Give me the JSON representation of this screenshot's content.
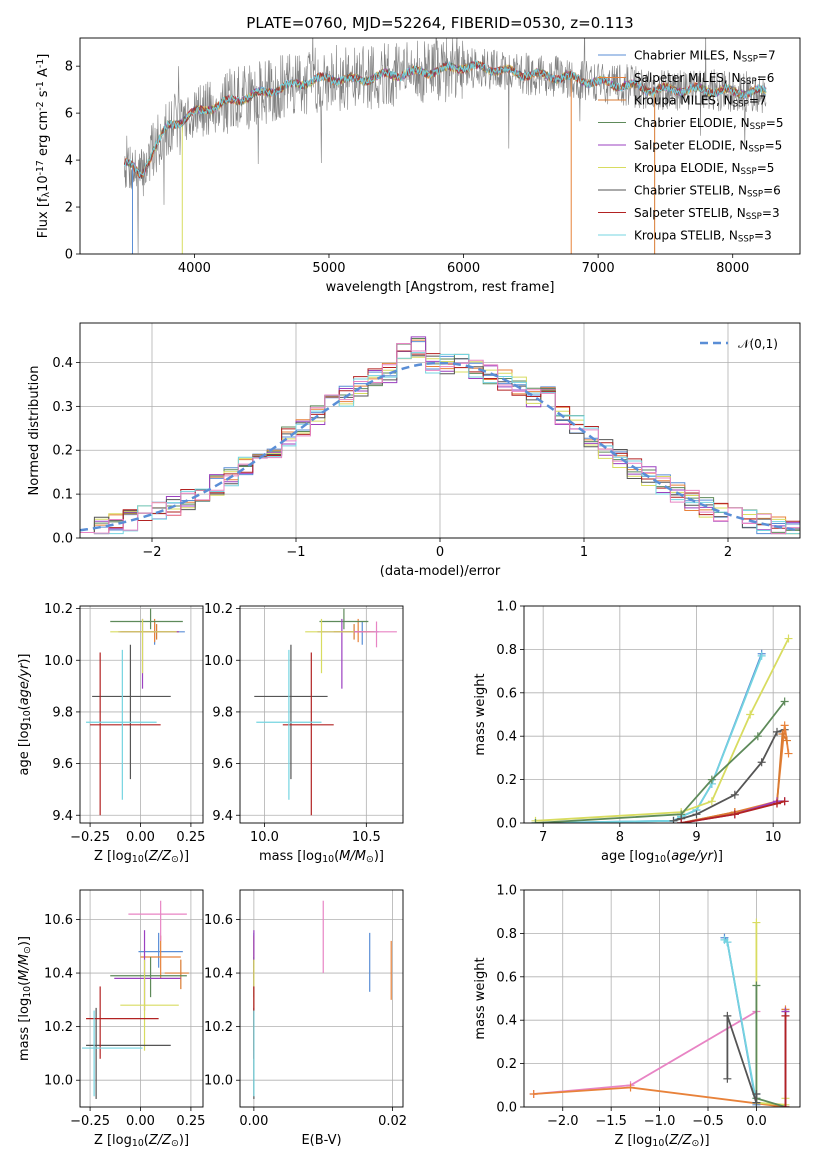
{
  "colors": [
    "#5a8ed6",
    "#e8823a",
    "#d97a30",
    "#5e8a5a",
    "#9b40c0",
    "#d8dc60",
    "#555555",
    "#b22222",
    "#74d4e0",
    "#e884c4"
  ],
  "chart_data": [
    {
      "id": "spectrum",
      "type": "line",
      "title": "PLATE=0760, MJD=52264, FIBERID=0530, z=0.113",
      "xlabel": "wavelength [Angstrom, rest frame]",
      "ylabel": "Flux [f$_\\lambda$10$^{-17}$ erg cm$^{-2}$ s$^{-1}$ A$^{-1}$]",
      "xlim": [
        3150,
        8500
      ],
      "ylim": [
        0,
        9.2
      ],
      "xticks": [
        "4000",
        "5000",
        "6000",
        "7000",
        "8000"
      ],
      "yticks": [
        "0",
        "2",
        "4",
        "6",
        "8"
      ],
      "grid": false,
      "legend_position": "top-right",
      "legend": [
        {
          "label": "Chabrier MILES, N$_{SSP}$=7",
          "color": "#5a8ed6"
        },
        {
          "label": "Salpeter MILES, N$_{SSP}$=6",
          "color": "#e8823a"
        },
        {
          "label": "Kroupa MILES, N$_{SSP}$=7",
          "color": "#d97a30"
        },
        {
          "label": "Chabrier ELODIE, N$_{SSP}$=5",
          "color": "#5e8a5a"
        },
        {
          "label": "Salpeter ELODIE, N$_{SSP}$=5",
          "color": "#9b40c0"
        },
        {
          "label": "Kroupa ELODIE, N$_{SSP}$=5",
          "color": "#d8dc60"
        },
        {
          "label": "Chabrier STELIB, N$_{SSP}$=6",
          "color": "#555555"
        },
        {
          "label": "Salpeter STELIB, N$_{SSP}$=3",
          "color": "#b22222"
        },
        {
          "label": "Kroupa STELIB, N$_{SSP}$=3",
          "color": "#74d4e0"
        }
      ],
      "model_envelope": [
        [
          3500,
          3.9
        ],
        [
          3600,
          3.3
        ],
        [
          3700,
          4.5
        ],
        [
          3800,
          5.4
        ],
        [
          3900,
          5.7
        ],
        [
          4000,
          6.0
        ],
        [
          4200,
          6.4
        ],
        [
          4400,
          6.7
        ],
        [
          4600,
          7.0
        ],
        [
          4800,
          7.3
        ],
        [
          5000,
          7.5
        ],
        [
          5200,
          7.4
        ],
        [
          5400,
          7.6
        ],
        [
          5600,
          7.7
        ],
        [
          5800,
          7.8
        ],
        [
          6000,
          8.0
        ],
        [
          6200,
          7.9
        ],
        [
          6400,
          7.7
        ],
        [
          6600,
          7.6
        ],
        [
          6800,
          7.5
        ],
        [
          7000,
          7.3
        ],
        [
          7200,
          7.2
        ],
        [
          7400,
          7.0
        ],
        [
          7600,
          7.0
        ],
        [
          7800,
          7.0
        ],
        [
          8000,
          6.9
        ],
        [
          8250,
          6.9
        ]
      ]
    },
    {
      "id": "residuals",
      "type": "line",
      "xlabel": "(data-model)/error",
      "ylabel": "Normed distribution",
      "xlim": [
        -2.5,
        2.5
      ],
      "ylim": [
        0,
        0.49
      ],
      "xticks": [
        "−2",
        "−1",
        "0",
        "1",
        "2"
      ],
      "yticks": [
        "0.0",
        "0.1",
        "0.2",
        "0.3",
        "0.4"
      ],
      "grid": true,
      "legend_position": "top-right",
      "legend": [
        {
          "label": "$\\mathcal{N}(0,1)$",
          "style": "dashed"
        }
      ],
      "normal_curve": {
        "mean": 0,
        "sigma": 1
      }
    },
    {
      "id": "age-vs-Z",
      "type": "scatter",
      "xlabel": "Z [log$_{10}$($Z/Z_\\odot$)]",
      "ylabel": "age  [log$_{10}$($age/yr$)]",
      "xlim": [
        -0.3,
        0.31
      ],
      "ylim": [
        9.37,
        10.21
      ],
      "xticks": [
        "−0.25",
        "0.00",
        "0.25"
      ],
      "yticks": [
        "9.4",
        "9.6",
        "9.8",
        "10.0",
        "10.2"
      ],
      "grid": true,
      "points": [
        {
          "x": 0.07,
          "y": 10.11,
          "xerr": [
            0.16,
            0.15
          ],
          "yerr": [
            0.05,
            0.04
          ],
          "color": "#5a8ed6"
        },
        {
          "x": 0.07,
          "y": 10.11,
          "xerr": [
            0.17,
            0.12
          ],
          "yerr": [
            0.04,
            0.05
          ],
          "color": "#e8823a"
        },
        {
          "x": 0.08,
          "y": 10.11,
          "xerr": [
            0.18,
            0.1
          ],
          "yerr": [
            0.03,
            0.03
          ],
          "color": "#d97a30"
        },
        {
          "x": 0.05,
          "y": 10.15,
          "xerr": [
            0.2,
            0.16
          ],
          "yerr": [
            0.03,
            0.05
          ],
          "color": "#5e8a5a"
        },
        {
          "x": 0.01,
          "y": 10.11,
          "xerr": [
            0.12,
            0.18
          ],
          "yerr": [
            0.22,
            0.05
          ],
          "color": "#9b40c0"
        },
        {
          "x": 0.01,
          "y": 10.11,
          "xerr": [
            0.16,
            0.17
          ],
          "yerr": [
            0.16,
            0.05
          ],
          "color": "#d8dc60"
        },
        {
          "x": -0.05,
          "y": 9.86,
          "xerr": [
            0.19,
            0.2
          ],
          "yerr": [
            0.32,
            0.2
          ],
          "color": "#555555"
        },
        {
          "x": -0.2,
          "y": 9.75,
          "xerr": [
            0.05,
            0.3
          ],
          "yerr": [
            0.35,
            0.28
          ],
          "color": "#b22222"
        },
        {
          "x": -0.09,
          "y": 9.76,
          "xerr": [
            0.18,
            0.17
          ],
          "yerr": [
            0.3,
            0.28
          ],
          "color": "#74d4e0"
        }
      ]
    },
    {
      "id": "age-vs-mass",
      "type": "scatter",
      "xlabel": "mass [log$_{10}$($M/M_\\odot$)]",
      "xlim": [
        9.88,
        10.68
      ],
      "ylim": [
        9.37,
        10.21
      ],
      "xticks": [
        "10.0",
        "10.5"
      ],
      "yticks": [
        "9.4",
        "9.6",
        "9.8",
        "10.0",
        "10.2"
      ],
      "grid": true,
      "points": [
        {
          "x": 10.48,
          "y": 10.11,
          "xerr": [
            0.1,
            0.08
          ],
          "yerr": [
            0.05,
            0.04
          ],
          "color": "#5a8ed6"
        },
        {
          "x": 10.46,
          "y": 10.11,
          "xerr": [
            0.12,
            0.08
          ],
          "yerr": [
            0.04,
            0.05
          ],
          "color": "#e8823a"
        },
        {
          "x": 10.44,
          "y": 10.11,
          "xerr": [
            0.1,
            0.08
          ],
          "yerr": [
            0.03,
            0.03
          ],
          "color": "#d97a30"
        },
        {
          "x": 10.39,
          "y": 10.15,
          "xerr": [
            0.12,
            0.12
          ],
          "yerr": [
            0.03,
            0.05
          ],
          "color": "#5e8a5a"
        },
        {
          "x": 10.38,
          "y": 10.11,
          "xerr": [
            0.12,
            0.1
          ],
          "yerr": [
            0.22,
            0.05
          ],
          "color": "#9b40c0"
        },
        {
          "x": 10.28,
          "y": 10.11,
          "xerr": [
            0.08,
            0.16
          ],
          "yerr": [
            0.16,
            0.05
          ],
          "color": "#d8dc60"
        },
        {
          "x": 10.13,
          "y": 9.86,
          "xerr": [
            0.18,
            0.18
          ],
          "yerr": [
            0.32,
            0.2
          ],
          "color": "#555555"
        },
        {
          "x": 10.23,
          "y": 9.75,
          "xerr": [
            0.14,
            0.11
          ],
          "yerr": [
            0.35,
            0.28
          ],
          "color": "#b22222"
        },
        {
          "x": 10.12,
          "y": 9.76,
          "xerr": [
            0.16,
            0.16
          ],
          "yerr": [
            0.3,
            0.28
          ],
          "color": "#74d4e0"
        },
        {
          "x": 10.55,
          "y": 10.11,
          "xerr": [
            0.11,
            0.1
          ],
          "yerr": [
            0.06,
            0.04
          ],
          "color": "#e884c4"
        }
      ]
    },
    {
      "id": "weight-vs-age",
      "type": "line",
      "xlabel": "age  [log$_{10}$($age/yr$)]",
      "ylabel": "mass weight",
      "xlim": [
        6.75,
        10.35
      ],
      "ylim": [
        0,
        1.0
      ],
      "xticks": [
        "7",
        "8",
        "9",
        "10"
      ],
      "yticks": [
        "0.0",
        "0.2",
        "0.4",
        "0.6",
        "0.8",
        "1.0"
      ],
      "grid": true,
      "series": [
        {
          "color": "#5a8ed6",
          "x": [
            6.9,
            8.7,
            8.8,
            9.0,
            9.2,
            9.85
          ],
          "y": [
            0.0,
            0.01,
            0.03,
            0.06,
            0.18,
            0.78
          ]
        },
        {
          "color": "#74d4e0",
          "x": [
            6.9,
            8.7,
            8.8,
            9.0,
            9.2,
            9.85
          ],
          "y": [
            0.0,
            0.01,
            0.03,
            0.06,
            0.18,
            0.77
          ]
        },
        {
          "color": "#d8dc60",
          "x": [
            6.9,
            8.8,
            9.2,
            9.7,
            10.2
          ],
          "y": [
            0.01,
            0.05,
            0.1,
            0.5,
            0.85
          ]
        },
        {
          "color": "#5e8a5a",
          "x": [
            6.9,
            8.8,
            9.2,
            9.8,
            10.15
          ],
          "y": [
            0.0,
            0.04,
            0.2,
            0.4,
            0.56
          ]
        },
        {
          "color": "#555555",
          "x": [
            8.7,
            8.8,
            9.0,
            9.5,
            9.85,
            10.05,
            10.15
          ],
          "y": [
            0.01,
            0.02,
            0.04,
            0.13,
            0.28,
            0.42,
            0.43
          ]
        },
        {
          "color": "#e8823a",
          "x": [
            8.8,
            9.5,
            10.05,
            10.15,
            10.2
          ],
          "y": [
            0.0,
            0.05,
            0.1,
            0.45,
            0.32
          ]
        },
        {
          "color": "#d97a30",
          "x": [
            8.8,
            9.5,
            10.05,
            10.12,
            10.18
          ],
          "y": [
            0.0,
            0.05,
            0.09,
            0.41,
            0.38
          ]
        },
        {
          "color": "#9b40c0",
          "x": [
            8.8,
            9.5,
            10.05,
            10.15
          ],
          "y": [
            0.0,
            0.04,
            0.1,
            0.1
          ]
        },
        {
          "color": "#b22222",
          "x": [
            8.8,
            9.5,
            10.05,
            10.15
          ],
          "y": [
            0.0,
            0.04,
            0.09,
            0.1
          ]
        }
      ]
    },
    {
      "id": "mass-vs-Z",
      "type": "scatter",
      "xlabel": "Z [log$_{10}$($Z/Z_\\odot$)]",
      "ylabel": "mass [log$_{10}$($M/M_\\odot$)]",
      "xlim": [
        -0.3,
        0.31
      ],
      "ylim": [
        9.9,
        10.71
      ],
      "xticks": [
        "−0.25",
        "0.00",
        "0.25"
      ],
      "yticks": [
        "10.0",
        "10.2",
        "10.4",
        "10.6"
      ],
      "grid": true,
      "points": [
        {
          "x": 0.09,
          "y": 10.48,
          "xerr": [
            0.1,
            0.12
          ],
          "yerr": [
            0.06,
            0.07
          ],
          "color": "#5a8ed6"
        },
        {
          "x": 0.1,
          "y": 10.46,
          "xerr": [
            0.1,
            0.1
          ],
          "yerr": [
            0.08,
            0.08
          ],
          "color": "#e8823a"
        },
        {
          "x": 0.2,
          "y": 10.4,
          "xerr": [
            0.08,
            0.04
          ],
          "yerr": [
            0.06,
            0.05
          ],
          "color": "#d97a30"
        },
        {
          "x": 0.05,
          "y": 10.39,
          "xerr": [
            0.2,
            0.18
          ],
          "yerr": [
            0.08,
            0.07
          ],
          "color": "#5e8a5a"
        },
        {
          "x": 0.02,
          "y": 10.38,
          "xerr": [
            0.15,
            0.18
          ],
          "yerr": [
            0.12,
            0.18
          ],
          "color": "#9b40c0"
        },
        {
          "x": 0.02,
          "y": 10.28,
          "xerr": [
            0.12,
            0.17
          ],
          "yerr": [
            0.17,
            0.17
          ],
          "color": "#d8dc60"
        },
        {
          "x": -0.22,
          "y": 10.13,
          "xerr": [
            0.05,
            0.37
          ],
          "yerr": [
            0.2,
            0.14
          ],
          "color": "#555555"
        },
        {
          "x": -0.2,
          "y": 10.23,
          "xerr": [
            0.07,
            0.29
          ],
          "yerr": [
            0.15,
            0.12
          ],
          "color": "#b22222"
        },
        {
          "x": -0.23,
          "y": 10.12,
          "xerr": [
            0.06,
            0.24
          ],
          "yerr": [
            0.18,
            0.14
          ],
          "color": "#74d4e0"
        },
        {
          "x": 0.1,
          "y": 10.62,
          "xerr": [
            0.16,
            0.13
          ],
          "yerr": [
            0.1,
            0.05
          ],
          "color": "#e884c4"
        }
      ]
    },
    {
      "id": "mass-vs-EBV",
      "type": "scatter",
      "xlabel": "E(B-V)",
      "xlim": [
        -0.002,
        0.0215
      ],
      "ylim": [
        9.9,
        10.71
      ],
      "xticks": [
        "0.00",
        "0.02"
      ],
      "yticks": [
        "10.0",
        "10.2",
        "10.4",
        "10.6"
      ],
      "grid": true,
      "points": [
        {
          "x": 0.0,
          "y": 10.48,
          "yerr": [
            0.06,
            0.07
          ],
          "color": "#5a8ed6"
        },
        {
          "x": 0.0,
          "y": 10.46,
          "yerr": [
            0.08,
            0.08
          ],
          "color": "#e8823a"
        },
        {
          "x": 0.0,
          "y": 10.4,
          "yerr": [
            0.06,
            0.05
          ],
          "color": "#d97a30"
        },
        {
          "x": 0.0,
          "y": 10.39,
          "yerr": [
            0.08,
            0.07
          ],
          "color": "#5e8a5a"
        },
        {
          "x": 0.0,
          "y": 10.38,
          "yerr": [
            0.12,
            0.18
          ],
          "color": "#9b40c0"
        },
        {
          "x": 0.0,
          "y": 10.28,
          "yerr": [
            0.17,
            0.17
          ],
          "color": "#d8dc60"
        },
        {
          "x": 0.0,
          "y": 10.13,
          "yerr": [
            0.2,
            0.14
          ],
          "color": "#555555"
        },
        {
          "x": 0.0,
          "y": 10.23,
          "yerr": [
            0.15,
            0.12
          ],
          "color": "#b22222"
        },
        {
          "x": 0.0,
          "y": 10.12,
          "yerr": [
            0.18,
            0.14
          ],
          "color": "#74d4e0"
        },
        {
          "x": 0.01,
          "y": 10.53,
          "yerr": [
            0.13,
            0.14
          ],
          "color": "#e884c4"
        },
        {
          "x": 0.0167,
          "y": 10.44,
          "yerr": [
            0.11,
            0.11
          ],
          "color": "#5a8ed6"
        },
        {
          "x": 0.0198,
          "y": 10.41,
          "yerr": [
            0.11,
            0.11
          ],
          "color": "#e8823a"
        }
      ]
    },
    {
      "id": "weight-vs-Z",
      "type": "line",
      "xlabel": "Z [log$_{10}$($Z/Z_\\odot$)]",
      "ylabel": "mass weight",
      "xlim": [
        -2.4,
        0.45
      ],
      "ylim": [
        0,
        1.0
      ],
      "xticks": [
        "−2.0",
        "−1.5",
        "−1.0",
        "−0.5",
        "0.0"
      ],
      "yticks": [
        "0.0",
        "0.2",
        "0.4",
        "0.6",
        "0.8",
        "1.0"
      ],
      "grid": true,
      "series": [
        {
          "color": "#e884c4",
          "x": [
            -2.3,
            -1.3,
            0.0
          ],
          "y": [
            0.06,
            0.1,
            0.44
          ]
        },
        {
          "color": "#e8823a",
          "x": [
            -2.3,
            -1.3,
            0.3,
            0.3
          ],
          "y": [
            0.06,
            0.09,
            0.0,
            0.45
          ]
        },
        {
          "color": "#5a8ed6",
          "x": [
            -0.33,
            -0.3,
            0.0,
            0.0
          ],
          "y": [
            0.78,
            0.76,
            0.01,
            0.06
          ]
        },
        {
          "color": "#74d4e0",
          "x": [
            -0.33,
            -0.3,
            0.0,
            0.0
          ],
          "y": [
            0.77,
            0.76,
            0.02,
            0.04
          ]
        },
        {
          "color": "#d8dc60",
          "x": [
            0.0,
            0.0,
            0.3,
            0.3
          ],
          "y": [
            0.85,
            0.02,
            0.01,
            0.04
          ]
        },
        {
          "color": "#5e8a5a",
          "x": [
            0.0,
            0.0,
            0.3,
            0.3
          ],
          "y": [
            0.56,
            0.04,
            0.0,
            0.44
          ]
        },
        {
          "color": "#555555",
          "x": [
            -0.3,
            -0.3,
            0.0,
            0.0
          ],
          "y": [
            0.13,
            0.42,
            0.02,
            0.06
          ]
        },
        {
          "color": "#9b40c0",
          "x": [
            0.3,
            0.3
          ],
          "y": [
            0.0,
            0.44
          ]
        },
        {
          "color": "#b22222",
          "x": [
            0.3,
            0.3
          ],
          "y": [
            0.0,
            0.42
          ]
        }
      ]
    }
  ]
}
